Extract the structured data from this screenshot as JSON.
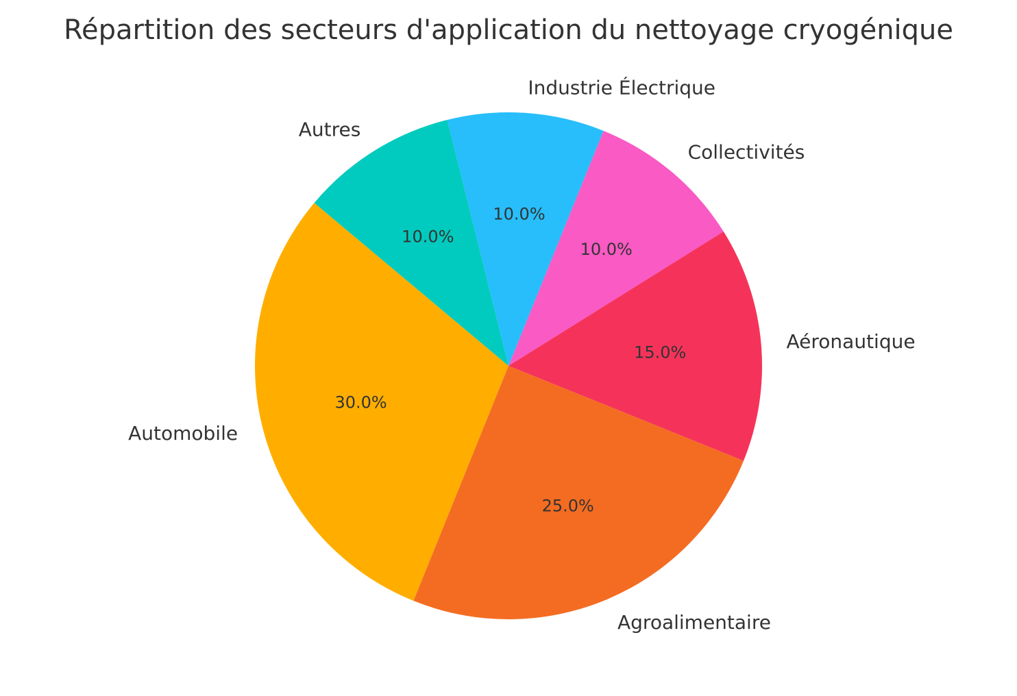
{
  "chart_data": {
    "type": "pie",
    "title": "Répartition des secteurs d'application du nettoyage cryogénique",
    "slices": [
      {
        "label": "Automobile",
        "value": 30.0,
        "pct_label": "30.0%",
        "color": "#FFAE00"
      },
      {
        "label": "Agroalimentaire",
        "value": 25.0,
        "pct_label": "25.0%",
        "color": "#F46C22"
      },
      {
        "label": "Aéronautique",
        "value": 15.0,
        "pct_label": "15.0%",
        "color": "#F5335A"
      },
      {
        "label": "Collectivités",
        "value": 10.0,
        "pct_label": "10.0%",
        "color": "#F95AC4"
      },
      {
        "label": "Industrie Électrique",
        "value": 10.0,
        "pct_label": "10.0%",
        "color": "#27BEFB"
      },
      {
        "label": "Autres",
        "value": 10.0,
        "pct_label": "10.0%",
        "color": "#00CBBE"
      }
    ],
    "start_angle_deg": 140,
    "direction": "counterclockwise",
    "legend": "none"
  }
}
